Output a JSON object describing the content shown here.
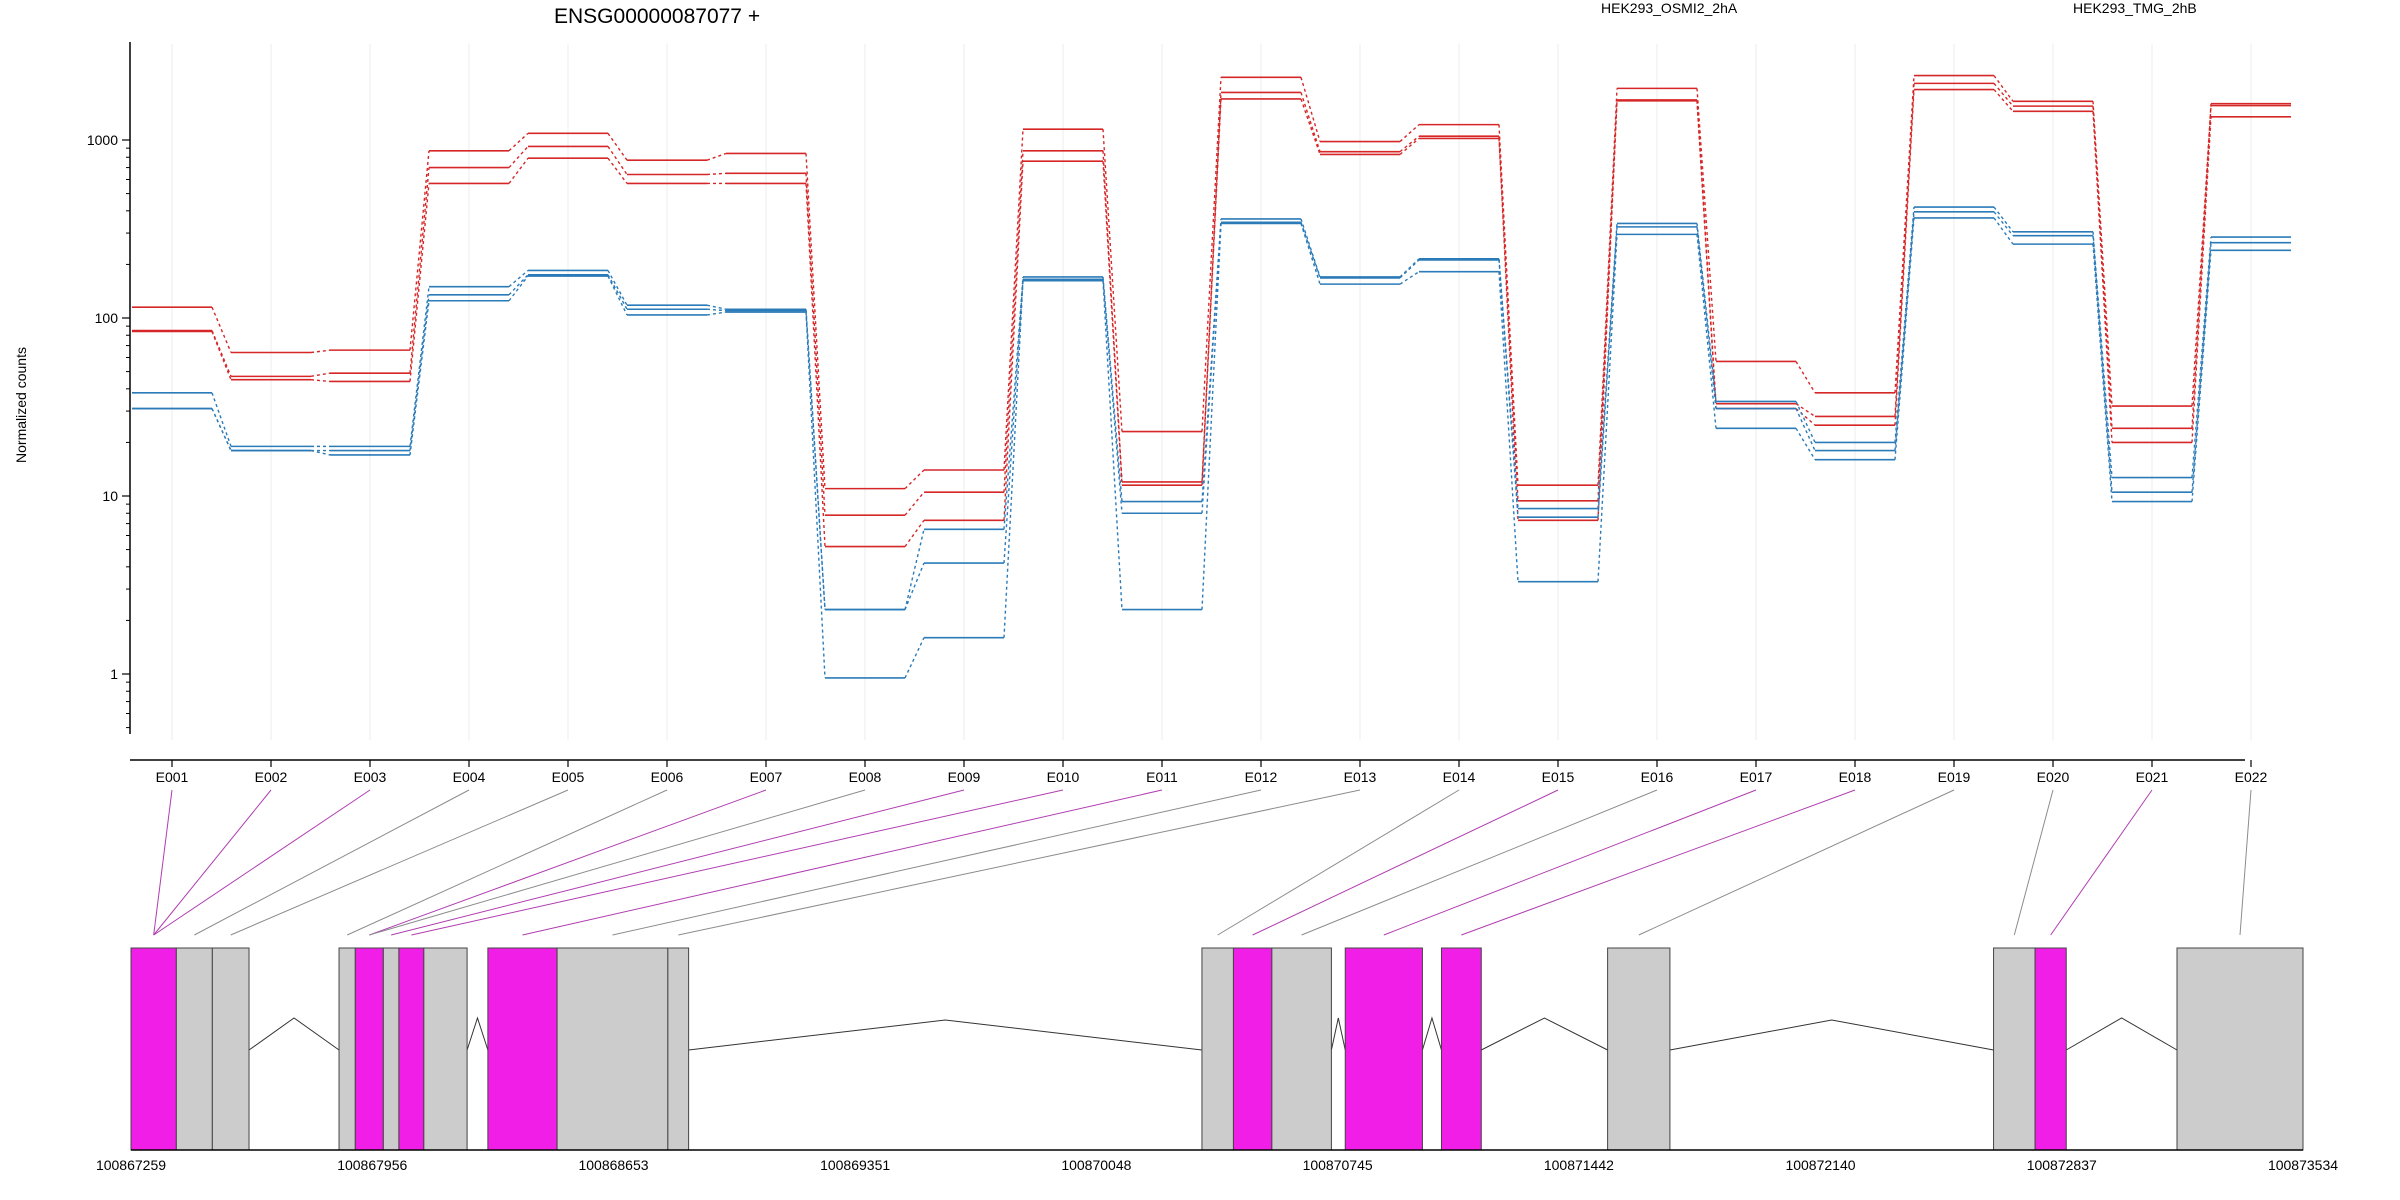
{
  "chart_data": {
    "type": "line",
    "title": "ENSG00000087077 +",
    "ylabel": "Normalized counts",
    "y_scale": "log",
    "y_ticks": [
      1,
      10,
      100,
      1000
    ],
    "y_tick_labels": [
      "1",
      "10",
      "100",
      "1000"
    ],
    "ylim": [
      0.5,
      3000
    ],
    "categories": [
      "E001",
      "E002",
      "E003",
      "E004",
      "E005",
      "E006",
      "E007",
      "E008",
      "E009",
      "E010",
      "E011",
      "E012",
      "E013",
      "E014",
      "E015",
      "E016",
      "E017",
      "E018",
      "E019",
      "E020",
      "E021",
      "E022"
    ],
    "legend": [
      {
        "label": "HEK293_OSMI2_2hA",
        "color": "#d62728"
      },
      {
        "label": "HEK293_TMG_2hB",
        "color": "#2b7bb9"
      }
    ],
    "groups": [
      {
        "name": "HEK293_OSMI2_2hA",
        "color": "#d62728",
        "lines": [
          [
            115,
            64,
            66,
            870,
            1090,
            770,
            840,
            11,
            14,
            1150,
            23,
            2250,
            980,
            1220,
            11.5,
            1950,
            57,
            38,
            2300,
            1650,
            32,
            1600
          ],
          [
            85,
            47,
            49,
            700,
            920,
            640,
            650,
            7.8,
            10.5,
            870,
            12,
            1850,
            860,
            1050,
            9.4,
            1680,
            33,
            28,
            2080,
            1550,
            24,
            1560
          ],
          [
            84,
            45,
            44,
            570,
            790,
            570,
            570,
            5.2,
            7.3,
            760,
            11.5,
            1700,
            830,
            1020,
            7.3,
            1660,
            31,
            25,
            1920,
            1450,
            20,
            1350
          ]
        ]
      },
      {
        "name": "HEK293_TMG_2hB",
        "color": "#2b7bb9",
        "lines": [
          [
            38,
            19,
            19,
            150,
            185,
            118,
            112,
            2.3,
            6.5,
            170,
            9.3,
            360,
            170,
            215,
            8.5,
            340,
            34,
            20,
            420,
            305,
            12.7,
            285
          ],
          [
            31,
            18,
            18,
            135,
            175,
            112,
            110,
            2.3,
            4.2,
            165,
            8,
            345,
            168,
            212,
            7.6,
            325,
            31,
            18,
            395,
            290,
            10.5,
            265
          ],
          [
            31,
            18,
            17,
            125,
            172,
            104,
            108,
            0.95,
            1.6,
            162,
            2.3,
            340,
            155,
            182,
            3.3,
            295,
            24,
            16,
            365,
            260,
            9.3,
            240
          ]
        ]
      }
    ],
    "gene_model": {
      "coordinate_ticks": [
        "100867259",
        "100867956",
        "100868653",
        "100869351",
        "100870048",
        "100870745",
        "100871442",
        "100872140",
        "100872837",
        "100873534"
      ],
      "range": [
        100867259,
        100873534
      ],
      "exons": [
        {
          "id": "E001",
          "start": 100867259,
          "end": 100867390,
          "highlighted": true
        },
        {
          "id": "E002",
          "start": 100867390,
          "end": 100867494,
          "highlighted": false
        },
        {
          "id": "E003",
          "start": 100867494,
          "end": 100867600,
          "highlighted": false
        },
        {
          "id": "E004",
          "start": 100867860,
          "end": 100867907,
          "highlighted": false
        },
        {
          "id": "E005",
          "start": 100867907,
          "end": 100867988,
          "highlighted": true
        },
        {
          "id": "E006",
          "start": 100867988,
          "end": 100868033,
          "highlighted": false
        },
        {
          "id": "E007",
          "start": 100868033,
          "end": 100868105,
          "highlighted": true
        },
        {
          "id": "E008",
          "start": 100868105,
          "end": 100868230,
          "highlighted": false
        },
        {
          "id": "E009",
          "start": 100868290,
          "end": 100868490,
          "highlighted": true
        },
        {
          "id": "E010",
          "start": 100868490,
          "end": 100868810,
          "highlighted": false
        },
        {
          "id": "E011",
          "start": 100868810,
          "end": 100868870,
          "highlighted": false
        },
        {
          "id": "E012",
          "start": 100870353,
          "end": 100870444,
          "highlighted": false
        },
        {
          "id": "E013",
          "start": 100870444,
          "end": 100870555,
          "highlighted": true
        },
        {
          "id": "E014",
          "start": 100870555,
          "end": 100870727,
          "highlighted": false
        },
        {
          "id": "E015",
          "start": 100870767,
          "end": 100870990,
          "highlighted": true
        },
        {
          "id": "E016",
          "start": 100871045,
          "end": 100871160,
          "highlighted": true
        },
        {
          "id": "E017",
          "start": 100871525,
          "end": 100871705,
          "highlighted": false
        },
        {
          "id": "E018",
          "start": 100872640,
          "end": 100872760,
          "highlighted": false
        },
        {
          "id": "E019",
          "start": 100872760,
          "end": 100872850,
          "highlighted": true
        },
        {
          "id": "E020",
          "start": 100873170,
          "end": 100873534,
          "highlighted": false
        }
      ],
      "connectors": [
        {
          "label": "E001",
          "exon": "E001",
          "highlighted": true
        },
        {
          "label": "E002",
          "exon": "E001",
          "highlighted": true
        },
        {
          "label": "E003",
          "exon": "E001",
          "highlighted": true
        },
        {
          "label": "E004",
          "exon": "E002",
          "highlighted": false
        },
        {
          "label": "E005",
          "exon": "E003",
          "highlighted": false
        },
        {
          "label": "E006",
          "exon": "E004",
          "highlighted": false
        },
        {
          "label": "E007",
          "exon": "E005",
          "highlighted": true
        },
        {
          "label": "E008",
          "exon": "E005",
          "highlighted": false
        },
        {
          "label": "E009",
          "exon": "E006",
          "highlighted": true
        },
        {
          "label": "E010",
          "exon": "E007",
          "highlighted": true
        },
        {
          "label": "E011",
          "exon": "E009",
          "highlighted": true
        },
        {
          "label": "E012",
          "exon": "E010",
          "highlighted": false
        },
        {
          "label": "E013",
          "exon": "E011",
          "highlighted": false
        },
        {
          "label": "E014",
          "exon": "E012",
          "highlighted": false
        },
        {
          "label": "E015",
          "exon": "E013",
          "highlighted": true
        },
        {
          "label": "E016",
          "exon": "E014",
          "highlighted": false
        },
        {
          "label": "E017",
          "exon": "E015",
          "highlighted": true
        },
        {
          "label": "E018",
          "exon": "E016",
          "highlighted": true
        },
        {
          "label": "E019",
          "exon": "E017",
          "highlighted": false
        },
        {
          "label": "E020",
          "exon": "E018",
          "highlighted": false
        },
        {
          "label": "E021",
          "exon": "E019",
          "highlighted": true
        },
        {
          "label": "E022",
          "exon": "E020",
          "highlighted": false
        }
      ]
    },
    "colors": {
      "exon_fill": "#cccccc",
      "exon_highlight": "#f01ee6",
      "connector_gray": "#8c8c8c",
      "connector_highlight": "#b03db0",
      "gridline": "#ececec"
    }
  }
}
